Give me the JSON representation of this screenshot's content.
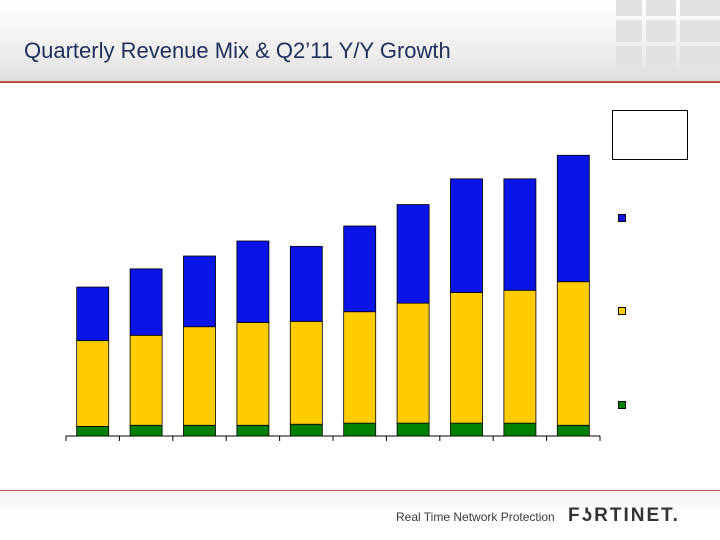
{
  "header": {
    "title": "Quarterly Revenue Mix & Q2’11 Y/Y Growth"
  },
  "footer": {
    "tagline": "Real Time Network Protection",
    "logo_text": "FʖRTINET."
  },
  "colors": {
    "accent": "#c0504d",
    "series_top": "#0a14e6",
    "series_middle": "#ffcc00",
    "series_bottom": "#008000"
  },
  "chart_data": {
    "type": "bar",
    "stacked": true,
    "categories": [
      "",
      "",
      "",
      "",
      "",
      "",
      "",
      "",
      "",
      ""
    ],
    "series": [
      {
        "values": [
          4.5,
          5,
          5,
          5,
          5.5,
          6,
          6,
          6,
          6,
          5
        ]
      },
      {
        "values": [
          40,
          42,
          46,
          48,
          48,
          52,
          56,
          61,
          62,
          67
        ]
      },
      {
        "values": [
          25,
          31,
          33,
          38,
          35,
          40,
          46,
          53,
          52,
          59
        ]
      }
    ],
    "ylim": [
      0,
      140
    ],
    "grid": false,
    "legend": "right"
  }
}
